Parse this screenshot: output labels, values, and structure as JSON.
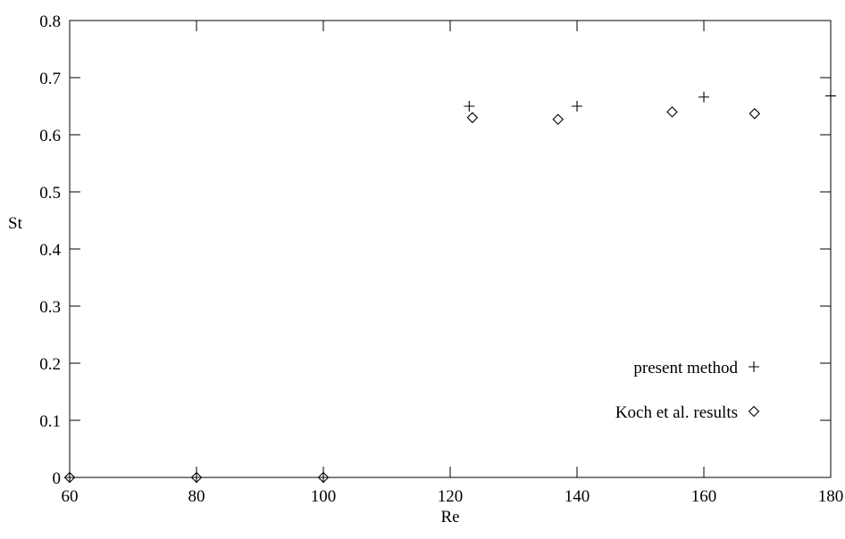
{
  "chart_data": {
    "type": "scatter",
    "title": "",
    "xlabel": "Re",
    "ylabel": "St",
    "xlim": [
      60,
      180
    ],
    "ylim": [
      0,
      0.8
    ],
    "grid": false,
    "legend_position": "bottom-right",
    "x_ticks": [
      "60",
      "80",
      "100",
      "120",
      "140",
      "160",
      "180"
    ],
    "y_ticks": [
      "0",
      "0.1",
      "0.2",
      "0.3",
      "0.4",
      "0.5",
      "0.6",
      "0.7",
      "0.8"
    ],
    "series": [
      {
        "name": "present method",
        "marker": "plus",
        "color": "#000000",
        "points": [
          {
            "x": 60,
            "y": 0
          },
          {
            "x": 80,
            "y": 0
          },
          {
            "x": 100,
            "y": 0
          },
          {
            "x": 123,
            "y": 0.65
          },
          {
            "x": 140,
            "y": 0.65
          },
          {
            "x": 160,
            "y": 0.666
          },
          {
            "x": 180,
            "y": 0.668
          }
        ]
      },
      {
        "name": "Koch et al. results",
        "marker": "diamond",
        "color": "#000000",
        "points": [
          {
            "x": 60,
            "y": 0
          },
          {
            "x": 80,
            "y": 0
          },
          {
            "x": 100,
            "y": 0
          },
          {
            "x": 123.5,
            "y": 0.63
          },
          {
            "x": 137,
            "y": 0.627
          },
          {
            "x": 155,
            "y": 0.64
          },
          {
            "x": 168,
            "y": 0.637
          }
        ]
      }
    ]
  }
}
